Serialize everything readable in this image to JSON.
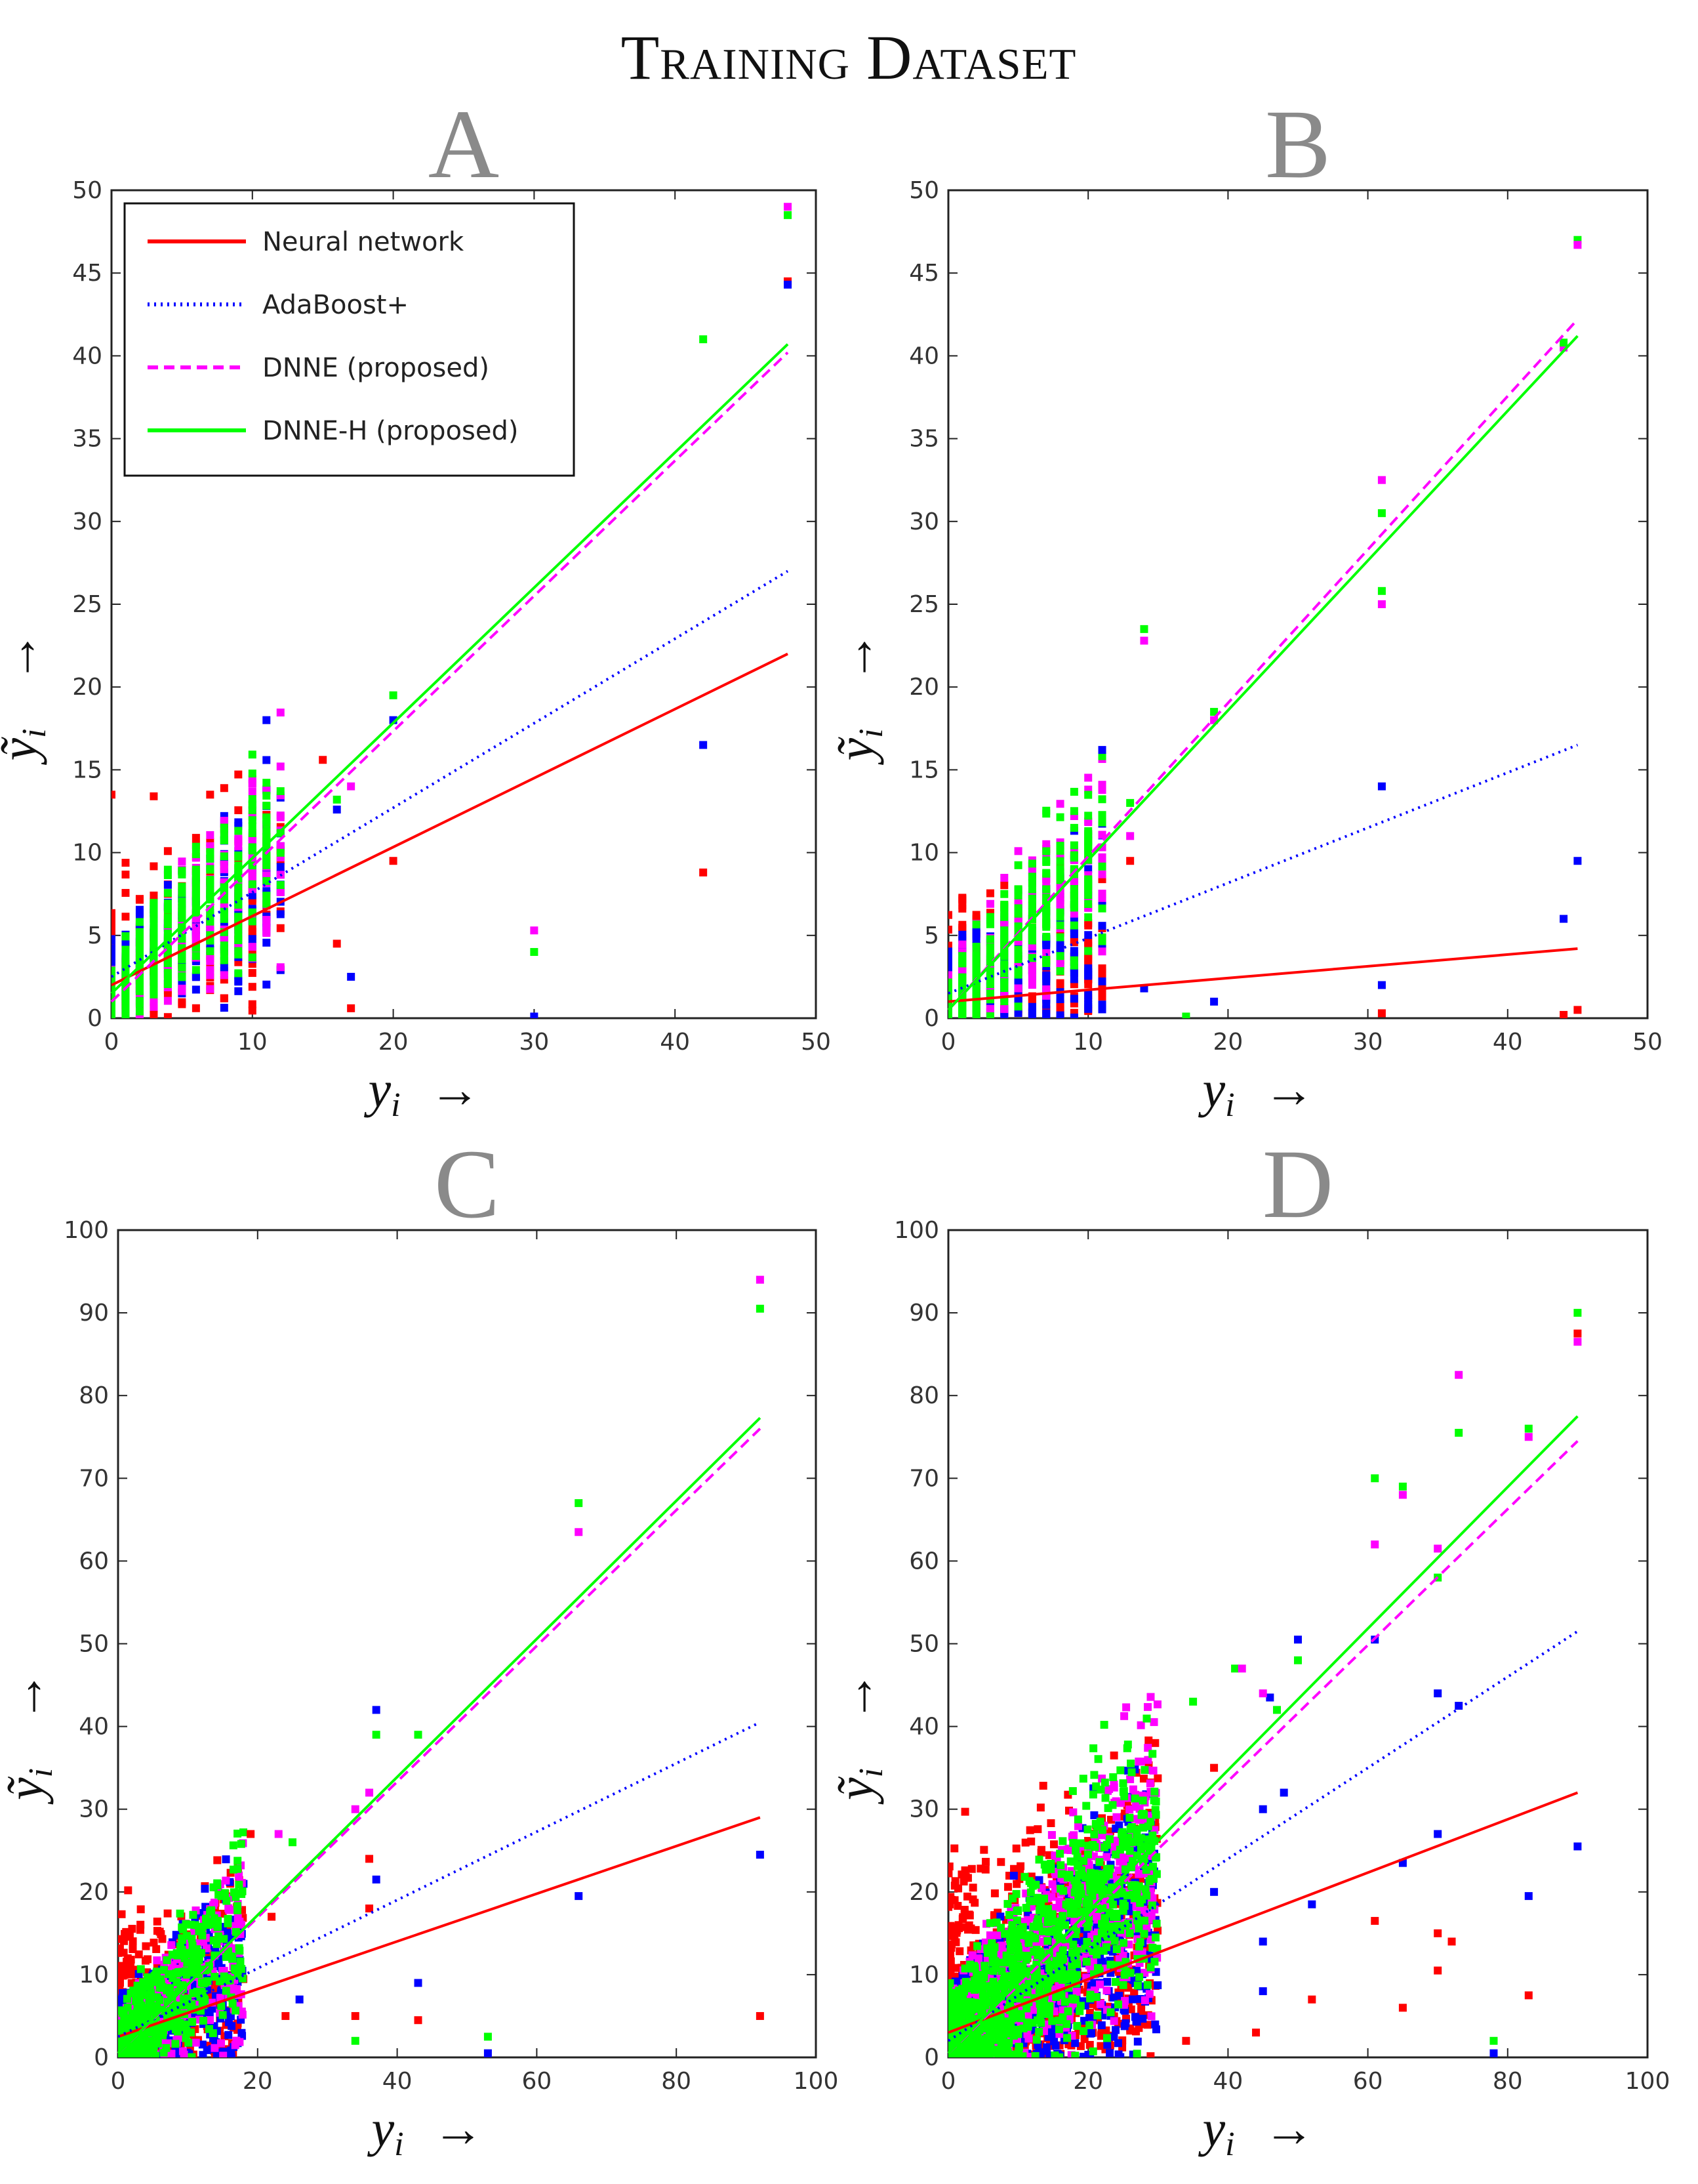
{
  "figure": {
    "title": "Training Dataset"
  },
  "legend": {
    "entries": [
      {
        "label": "Neural network",
        "color": "#ff0000",
        "style": "solid"
      },
      {
        "label": "AdaBoost+",
        "color": "#0000ff",
        "style": "dotted"
      },
      {
        "label": "DNNE (proposed)",
        "color": "#ff00ff",
        "style": "dashed"
      },
      {
        "label": "DNNE-H (proposed)",
        "color": "#00ff00",
        "style": "solid"
      }
    ],
    "placement": "top-left of panel A"
  },
  "colors": {
    "nn": "#ff0000",
    "ada": "#0000ff",
    "dnne": "#ff00ff",
    "dnneh": "#00ff00"
  },
  "chart_data": [
    {
      "panel": "A",
      "type": "scatter",
      "xlabel": "y_i →",
      "ylabel": "ỹ_i →",
      "xlim": [
        0,
        50
      ],
      "ylim": [
        0,
        50
      ],
      "xticks": [
        0,
        10,
        20,
        30,
        40,
        50
      ],
      "yticks": [
        0,
        5,
        10,
        15,
        20,
        25,
        30,
        35,
        40,
        45,
        50
      ],
      "x_range": [
        0,
        48
      ],
      "fits": {
        "nn": [
          2.0,
          22.0
        ],
        "ada": [
          2.5,
          27.0
        ],
        "dnne": [
          1.0,
          40.2
        ],
        "dnneh": [
          1.5,
          40.7
        ]
      },
      "outliers": [
        {
          "s": "dnne",
          "x": 48,
          "y": 49.0
        },
        {
          "s": "dnneh",
          "x": 48,
          "y": 48.5
        },
        {
          "s": "nn",
          "x": 48,
          "y": 44.5
        },
        {
          "s": "ada",
          "x": 48,
          "y": 44.3
        },
        {
          "s": "dnneh",
          "x": 42,
          "y": 41.0
        },
        {
          "s": "ada",
          "x": 42,
          "y": 16.5
        },
        {
          "s": "nn",
          "x": 42,
          "y": 8.8
        },
        {
          "s": "dnne",
          "x": 30,
          "y": 5.3
        },
        {
          "s": "dnneh",
          "x": 30,
          "y": 4.0
        },
        {
          "s": "ada",
          "x": 30,
          "y": 0.1
        },
        {
          "s": "dnneh",
          "x": 20,
          "y": 19.5
        },
        {
          "s": "ada",
          "x": 20,
          "y": 18.0
        },
        {
          "s": "nn",
          "x": 20,
          "y": 9.5
        },
        {
          "s": "ada",
          "x": 11,
          "y": 18.0
        },
        {
          "s": "nn",
          "x": 15,
          "y": 15.6
        },
        {
          "s": "nn",
          "x": 0,
          "y": 13.5
        },
        {
          "s": "nn",
          "x": 3,
          "y": 13.4
        },
        {
          "s": "ada",
          "x": 17,
          "y": 2.5
        },
        {
          "s": "nn",
          "x": 16,
          "y": 4.5
        },
        {
          "s": "nn",
          "x": 17,
          "y": 0.6
        },
        {
          "s": "dnneh",
          "x": 16,
          "y": 13.2
        },
        {
          "s": "ada",
          "x": 16,
          "y": 12.6
        },
        {
          "s": "dnne",
          "x": 17,
          "y": 14.0
        }
      ],
      "cloud": {
        "xmax": 12,
        "discrete": true,
        "n": 300,
        "spread": 3.0
      }
    },
    {
      "panel": "B",
      "type": "scatter",
      "xlabel": "y_i →",
      "ylabel": "ỹ_i →",
      "xlim": [
        0,
        50
      ],
      "ylim": [
        0,
        50
      ],
      "xticks": [
        0,
        10,
        20,
        30,
        40,
        50
      ],
      "yticks": [
        0,
        5,
        10,
        15,
        20,
        25,
        30,
        35,
        40,
        45,
        50
      ],
      "x_range": [
        0,
        45
      ],
      "fits": {
        "nn": [
          1.0,
          4.2
        ],
        "ada": [
          1.5,
          16.5
        ],
        "dnne": [
          0.5,
          42.2
        ],
        "dnneh": [
          0.5,
          41.2
        ]
      },
      "outliers": [
        {
          "s": "dnneh",
          "x": 45,
          "y": 47.0
        },
        {
          "s": "dnne",
          "x": 45,
          "y": 46.7
        },
        {
          "s": "dnne",
          "x": 44,
          "y": 40.5
        },
        {
          "s": "dnneh",
          "x": 44,
          "y": 40.8
        },
        {
          "s": "ada",
          "x": 45,
          "y": 9.5
        },
        {
          "s": "ada",
          "x": 44,
          "y": 6.0
        },
        {
          "s": "nn",
          "x": 45,
          "y": 0.5
        },
        {
          "s": "nn",
          "x": 44,
          "y": 0.2
        },
        {
          "s": "dnne",
          "x": 31,
          "y": 32.5
        },
        {
          "s": "dnneh",
          "x": 31,
          "y": 30.5
        },
        {
          "s": "dnneh",
          "x": 31,
          "y": 25.8
        },
        {
          "s": "dnne",
          "x": 31,
          "y": 25.0
        },
        {
          "s": "ada",
          "x": 31,
          "y": 14.0
        },
        {
          "s": "ada",
          "x": 31,
          "y": 2.0
        },
        {
          "s": "nn",
          "x": 31,
          "y": 0.3
        },
        {
          "s": "dnneh",
          "x": 14,
          "y": 23.5
        },
        {
          "s": "dnne",
          "x": 14,
          "y": 22.8
        },
        {
          "s": "dnneh",
          "x": 19,
          "y": 18.5
        },
        {
          "s": "dnne",
          "x": 19,
          "y": 18.0
        },
        {
          "s": "ada",
          "x": 11,
          "y": 16.2
        },
        {
          "s": "dnneh",
          "x": 13,
          "y": 13.0
        },
        {
          "s": "dnne",
          "x": 13,
          "y": 11.0
        },
        {
          "s": "nn",
          "x": 13,
          "y": 9.5
        },
        {
          "s": "ada",
          "x": 14,
          "y": 1.8
        },
        {
          "s": "ada",
          "x": 19,
          "y": 1.0
        },
        {
          "s": "dnneh",
          "x": 17,
          "y": 0.1
        }
      ],
      "cloud": {
        "xmax": 11,
        "discrete": true,
        "n": 300,
        "spread": 3.0
      }
    },
    {
      "panel": "C",
      "type": "scatter",
      "xlabel": "y_i →",
      "ylabel": "ỹ_i →",
      "xlim": [
        0,
        100
      ],
      "ylim": [
        0,
        100
      ],
      "xticks": [
        0,
        20,
        40,
        60,
        80,
        100
      ],
      "yticks": [
        0,
        10,
        20,
        30,
        40,
        50,
        60,
        70,
        80,
        90,
        100
      ],
      "x_range": [
        0,
        92
      ],
      "fits": {
        "nn": [
          2.5,
          29.0
        ],
        "ada": [
          2.5,
          40.5
        ],
        "dnne": [
          0.5,
          76.0
        ],
        "dnneh": [
          0.5,
          77.3
        ]
      },
      "outliers": [
        {
          "s": "dnne",
          "x": 92,
          "y": 94.0
        },
        {
          "s": "dnneh",
          "x": 92,
          "y": 90.5
        },
        {
          "s": "ada",
          "x": 92,
          "y": 24.5
        },
        {
          "s": "nn",
          "x": 92,
          "y": 5.0
        },
        {
          "s": "dnneh",
          "x": 66,
          "y": 67.0
        },
        {
          "s": "dnne",
          "x": 66,
          "y": 63.5
        },
        {
          "s": "ada",
          "x": 66,
          "y": 19.5
        },
        {
          "s": "ada",
          "x": 37,
          "y": 42.0
        },
        {
          "s": "dnneh",
          "x": 37,
          "y": 39.0
        },
        {
          "s": "dnne",
          "x": 36,
          "y": 32.0
        },
        {
          "s": "nn",
          "x": 36,
          "y": 24.0
        },
        {
          "s": "ada",
          "x": 37,
          "y": 21.5
        },
        {
          "s": "nn",
          "x": 36,
          "y": 18.0
        },
        {
          "s": "dnneh",
          "x": 43,
          "y": 39.0
        },
        {
          "s": "ada",
          "x": 43,
          "y": 9.0
        },
        {
          "s": "nn",
          "x": 43,
          "y": 4.5
        },
        {
          "s": "dnneh",
          "x": 53,
          "y": 2.5
        },
        {
          "s": "ada",
          "x": 53,
          "y": 0.5
        },
        {
          "s": "dnne",
          "x": 34,
          "y": 30.0
        },
        {
          "s": "nn",
          "x": 34,
          "y": 5.0
        },
        {
          "s": "dnneh",
          "x": 34,
          "y": 2.0
        },
        {
          "s": "nn",
          "x": 19,
          "y": 27.0
        },
        {
          "s": "dnneh",
          "x": 25,
          "y": 26.0
        },
        {
          "s": "dnne",
          "x": 23,
          "y": 27.0
        },
        {
          "s": "nn",
          "x": 22,
          "y": 17.0
        },
        {
          "s": "ada",
          "x": 26,
          "y": 7.0
        },
        {
          "s": "nn",
          "x": 24,
          "y": 5.0
        }
      ],
      "cloud": {
        "xmax": 18,
        "discrete": false,
        "n": 420,
        "spread": 6.0
      }
    },
    {
      "panel": "D",
      "type": "scatter",
      "xlabel": "y_i →",
      "ylabel": "ỹ_i →",
      "xlim": [
        0,
        100
      ],
      "ylim": [
        0,
        100
      ],
      "xticks": [
        0,
        20,
        40,
        60,
        80,
        100
      ],
      "yticks": [
        0,
        10,
        20,
        30,
        40,
        50,
        60,
        70,
        80,
        90,
        100
      ],
      "x_range": [
        0,
        90
      ],
      "fits": {
        "nn": [
          3.0,
          32.0
        ],
        "ada": [
          2.0,
          51.5
        ],
        "dnne": [
          0.5,
          74.5
        ],
        "dnneh": [
          0.5,
          77.5
        ]
      },
      "outliers": [
        {
          "s": "dnneh",
          "x": 90,
          "y": 90.0
        },
        {
          "s": "nn",
          "x": 90,
          "y": 87.5
        },
        {
          "s": "dnne",
          "x": 90,
          "y": 86.5
        },
        {
          "s": "ada",
          "x": 90,
          "y": 25.5
        },
        {
          "s": "dnne",
          "x": 73,
          "y": 82.5
        },
        {
          "s": "dnneh",
          "x": 73,
          "y": 75.5
        },
        {
          "s": "dnneh",
          "x": 83,
          "y": 76.0
        },
        {
          "s": "dnne",
          "x": 83,
          "y": 75.0
        },
        {
          "s": "ada",
          "x": 83,
          "y": 19.5
        },
        {
          "s": "nn",
          "x": 83,
          "y": 7.5
        },
        {
          "s": "dnneh",
          "x": 78,
          "y": 2.0
        },
        {
          "s": "ada",
          "x": 78,
          "y": 0.5
        },
        {
          "s": "dnneh",
          "x": 61,
          "y": 70.0
        },
        {
          "s": "dnne",
          "x": 61,
          "y": 62.0
        },
        {
          "s": "dnneh",
          "x": 65,
          "y": 69.0
        },
        {
          "s": "dnne",
          "x": 65,
          "y": 68.0
        },
        {
          "s": "dnne",
          "x": 70,
          "y": 61.5
        },
        {
          "s": "dnneh",
          "x": 70,
          "y": 58.0
        },
        {
          "s": "ada",
          "x": 70,
          "y": 44.0
        },
        {
          "s": "ada",
          "x": 70,
          "y": 27.0
        },
        {
          "s": "nn",
          "x": 70,
          "y": 15.0
        },
        {
          "s": "nn",
          "x": 70,
          "y": 10.5
        },
        {
          "s": "nn",
          "x": 72,
          "y": 14.0
        },
        {
          "s": "ada",
          "x": 73,
          "y": 42.5
        },
        {
          "s": "ada",
          "x": 65,
          "y": 23.5
        },
        {
          "s": "nn",
          "x": 61,
          "y": 16.5
        },
        {
          "s": "nn",
          "x": 65,
          "y": 6.0
        },
        {
          "s": "ada",
          "x": 61,
          "y": 50.5
        },
        {
          "s": "ada",
          "x": 50,
          "y": 50.5
        },
        {
          "s": "dnneh",
          "x": 50,
          "y": 48.0
        },
        {
          "s": "ada",
          "x": 46,
          "y": 43.5
        },
        {
          "s": "dnneh",
          "x": 47,
          "y": 42.0
        },
        {
          "s": "dnne",
          "x": 45,
          "y": 44.0
        },
        {
          "s": "ada",
          "x": 48,
          "y": 32.0
        },
        {
          "s": "dnneh",
          "x": 41,
          "y": 47.0
        },
        {
          "s": "dnne",
          "x": 42,
          "y": 47.0
        },
        {
          "s": "ada",
          "x": 45,
          "y": 30.0
        },
        {
          "s": "nn",
          "x": 44,
          "y": 3.0
        },
        {
          "s": "nn",
          "x": 52,
          "y": 7.0
        },
        {
          "s": "ada",
          "x": 52,
          "y": 18.5
        },
        {
          "s": "ada",
          "x": 45,
          "y": 14.0
        },
        {
          "s": "nn",
          "x": 38,
          "y": 35.0
        },
        {
          "s": "dnneh",
          "x": 35,
          "y": 43.0
        },
        {
          "s": "ada",
          "x": 38,
          "y": 20.0
        },
        {
          "s": "nn",
          "x": 34,
          "y": 2.0
        },
        {
          "s": "ada",
          "x": 45,
          "y": 8.0
        }
      ],
      "cloud": {
        "xmax": 30,
        "discrete": false,
        "n": 900,
        "spread": 9.0
      }
    }
  ]
}
